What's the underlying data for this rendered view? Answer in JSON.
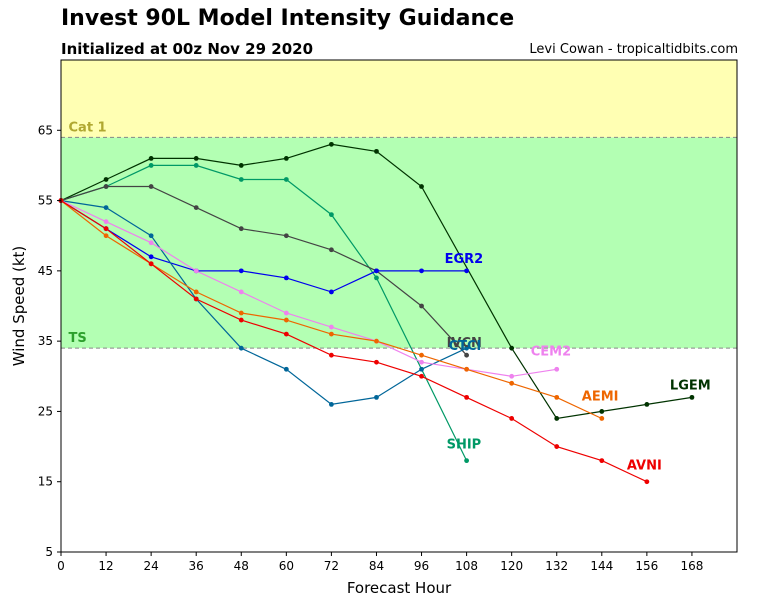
{
  "chart_data": {
    "type": "line",
    "title": "Invest 90L Model Intensity Guidance",
    "subtitle": "Initialized at 00z Nov 29 2020",
    "credit": "Levi Cowan - tropicaltidbits.com",
    "xlabel": "Forecast Hour",
    "ylabel": "Wind Speed (kt)",
    "xlim": [
      0,
      180
    ],
    "ylim": [
      5,
      75
    ],
    "xticks": [
      0,
      12,
      24,
      36,
      48,
      60,
      72,
      84,
      96,
      108,
      120,
      132,
      144,
      156,
      168
    ],
    "yticks": [
      5,
      15,
      25,
      35,
      45,
      55,
      65
    ],
    "bands": [
      {
        "name": "TS",
        "from": 34,
        "to": 64,
        "fill": "#b3ffb3",
        "label_color": "#2ca02c"
      },
      {
        "name": "Cat 1",
        "from": 64,
        "to": 83,
        "fill": "#ffffb3",
        "label_color": "#b0a830"
      }
    ],
    "series": [
      {
        "name": "LGEM",
        "color": "#003300",
        "x": [
          0,
          12,
          24,
          36,
          48,
          60,
          72,
          84,
          96,
          120,
          132,
          144,
          156,
          168
        ],
        "y": [
          55,
          58,
          61,
          61,
          60,
          61,
          63,
          62,
          57,
          34,
          24,
          25,
          26,
          27
        ]
      },
      {
        "name": "SHIP",
        "color": "#009966",
        "x": [
          0,
          12,
          24,
          36,
          48,
          60,
          72,
          84,
          108
        ],
        "y": [
          55,
          57,
          60,
          60,
          58,
          58,
          53,
          44,
          18
        ]
      },
      {
        "name": "IVCN",
        "color": "#444444",
        "x": [
          0,
          12,
          24,
          36,
          48,
          60,
          72,
          84,
          96,
          108
        ],
        "y": [
          55,
          57,
          57,
          54,
          51,
          50,
          48,
          45,
          40,
          33
        ]
      },
      {
        "name": "EGR2",
        "color": "#0000ee",
        "x": [
          0,
          12,
          24,
          36,
          48,
          60,
          72,
          84,
          96,
          108
        ],
        "y": [
          55,
          51,
          47,
          45,
          45,
          44,
          42,
          45,
          45,
          45
        ]
      },
      {
        "name": "CTCI",
        "color": "#006699",
        "x": [
          0,
          12,
          24,
          36,
          48,
          60,
          72,
          84,
          96,
          108
        ],
        "y": [
          55,
          54,
          50,
          41,
          34,
          31,
          26,
          27,
          31,
          34
        ]
      },
      {
        "name": "CEM2",
        "color": "#ee82ee",
        "x": [
          0,
          12,
          24,
          36,
          48,
          60,
          72,
          84,
          96,
          108,
          120,
          132
        ],
        "y": [
          55,
          52,
          49,
          45,
          42,
          39,
          37,
          35,
          32,
          31,
          30,
          31
        ]
      },
      {
        "name": "AEMI",
        "color": "#ee6600",
        "x": [
          0,
          12,
          24,
          36,
          48,
          60,
          72,
          84,
          96,
          108,
          120,
          132,
          144
        ],
        "y": [
          55,
          50,
          46,
          42,
          39,
          38,
          36,
          35,
          33,
          31,
          29,
          27,
          24
        ]
      },
      {
        "name": "AVNI",
        "color": "#ee0000",
        "x": [
          0,
          12,
          24,
          36,
          48,
          60,
          72,
          84,
          96,
          108,
          120,
          132,
          144,
          156
        ],
        "y": [
          55,
          51,
          46,
          41,
          38,
          36,
          33,
          32,
          30,
          27,
          24,
          20,
          18,
          15
        ]
      }
    ]
  }
}
